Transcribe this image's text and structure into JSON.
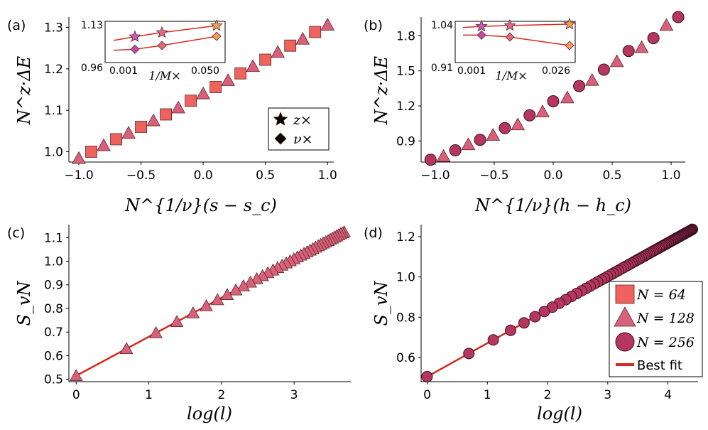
{
  "colors": {
    "n64": "#f0625e",
    "n128": "#d9607a",
    "n256": "#b5365e",
    "fit": "#d42a1f",
    "inset_star_purple": "#c65ab5",
    "inset_star_orange": "#f59a57",
    "inset_diamond_purple": "#c14ba6",
    "inset_diamond_orange": "#f39960"
  },
  "icons": {
    "square": "square-marker-icon",
    "triangle": "triangle-marker-icon",
    "circle": "circle-marker-icon",
    "star": "star-marker-icon",
    "diamond": "diamond-marker-icon"
  },
  "chart_data": [
    {
      "panel": "(a)",
      "type": "scatter",
      "xlabel": "N^{1/ν}(s − s_c)",
      "ylabel": "N^z·ΔE",
      "xlim": [
        -1.08,
        1.05
      ],
      "ylim": [
        0.975,
        1.325
      ],
      "xticks": [
        "−1.0",
        "−0.5",
        "0.0",
        "0.5",
        "1.0"
      ],
      "xtick_values": [
        -1.0,
        -0.5,
        0.0,
        0.5,
        1.0
      ],
      "yticks": [
        "1.0",
        "1.1",
        "1.2",
        "1.3"
      ],
      "ytick_values": [
        1.0,
        1.1,
        1.2,
        1.3
      ],
      "series": [
        {
          "name": "N = 64",
          "marker": "square",
          "x": [
            -0.9,
            -0.7,
            -0.5,
            -0.3,
            -0.1,
            0.1,
            0.3,
            0.5,
            0.7,
            0.9
          ],
          "y": [
            1.0,
            1.03,
            1.06,
            1.09,
            1.123,
            1.156,
            1.189,
            1.222,
            1.256,
            1.289
          ]
        },
        {
          "name": "N = 128",
          "marker": "triangle",
          "x": [
            -1.0,
            -0.8,
            -0.6,
            -0.4,
            -0.2,
            0.0,
            0.2,
            0.4,
            0.6,
            0.8,
            1.0
          ],
          "y": [
            0.984,
            1.015,
            1.045,
            1.075,
            1.106,
            1.14,
            1.172,
            1.206,
            1.24,
            1.272,
            1.306
          ]
        }
      ],
      "legend": {
        "placement": "lower-right",
        "entries": [
          {
            "marker": "star",
            "label": "z×"
          },
          {
            "marker": "diamond",
            "label": "ν×"
          }
        ]
      },
      "inset": {
        "xlabel": "1/M×",
        "xticks": [
          "0.001",
          "0.050"
        ],
        "yticks": [
          "1.13",
          "0.96"
        ],
        "ylim": [
          0.96,
          1.13
        ],
        "x": [
          0.001,
          0.005,
          0.01,
          0.05
        ],
        "z_series": [
          1.052,
          1.07,
          1.09,
          1.123
        ],
        "nu_series": [
          1.005,
          1.01,
          1.028,
          1.072
        ]
      }
    },
    {
      "panel": "(b)",
      "type": "scatter",
      "xlabel": "N^{1/ν}(h − h_c)",
      "ylabel": "N^z·ΔE",
      "xlim": [
        -1.12,
        1.12
      ],
      "ylim": [
        0.72,
        1.96
      ],
      "xticks": [
        "−1.0",
        "−0.5",
        "0.0",
        "0.5",
        "1.0"
      ],
      "xtick_values": [
        -1.0,
        -0.5,
        0.0,
        0.5,
        1.0
      ],
      "yticks": [
        "0.9",
        "1.2",
        "1.5",
        "1.8"
      ],
      "ytick_values": [
        0.9,
        1.2,
        1.5,
        1.8
      ],
      "series": [
        {
          "name": "N = 128",
          "marker": "triangle",
          "x": [
            -0.93,
            -0.72,
            -0.51,
            -0.3,
            -0.09,
            0.12,
            0.33,
            0.54,
            0.75,
            0.96
          ],
          "y": [
            0.77,
            0.87,
            0.95,
            1.04,
            1.15,
            1.27,
            1.42,
            1.58,
            1.7,
            1.89
          ]
        },
        {
          "name": "N = 256",
          "marker": "circle",
          "x": [
            -1.04,
            -0.83,
            -0.62,
            -0.41,
            -0.2,
            0.0,
            0.22,
            0.43,
            0.64,
            0.85,
            1.06
          ],
          "y": [
            0.74,
            0.82,
            0.91,
            1.01,
            1.12,
            1.24,
            1.37,
            1.51,
            1.67,
            1.78,
            1.96
          ]
        }
      ],
      "inset": {
        "xlabel": "1/M×",
        "xticks": [
          "0.001",
          "0.026"
        ],
        "yticks": [
          "1.04",
          "0.91"
        ],
        "ylim": [
          0.91,
          1.04
        ],
        "x": [
          0.001,
          0.005,
          0.01,
          0.026
        ],
        "z_series": [
          1.028,
          1.032,
          1.035,
          1.04
        ],
        "nu_series": [
          1.0,
          1.0,
          0.993,
          0.962
        ]
      }
    },
    {
      "panel": "(c)",
      "type": "scatter",
      "xlabel": "log(l)",
      "ylabel": "S_vN",
      "xlim": [
        -0.1,
        3.78
      ],
      "ylim": [
        0.49,
        1.155
      ],
      "xticks": [
        "0",
        "1",
        "2",
        "3"
      ],
      "xtick_values": [
        0,
        1,
        2,
        3
      ],
      "yticks": [
        "0.5",
        "0.6",
        "0.7",
        "0.8",
        "0.9",
        "1.0",
        "1.1"
      ],
      "ytick_values": [
        0.5,
        0.6,
        0.7,
        0.8,
        0.9,
        1.0,
        1.1
      ],
      "series": [
        {
          "name": "N = 128",
          "marker": "triangle",
          "l_from": 1,
          "l_to": 40,
          "fit_intercept": 0.515,
          "fit_slope": 0.165
        }
      ],
      "fit": {
        "name": "Best fit",
        "x": [
          0,
          3.72
        ],
        "y": [
          0.515,
          1.129
        ]
      }
    },
    {
      "panel": "(d)",
      "type": "scatter",
      "xlabel": "log(l)",
      "ylabel": "S_vN",
      "xlim": [
        -0.1,
        4.5
      ],
      "ylim": [
        0.48,
        1.26
      ],
      "xticks": [
        "0",
        "1",
        "2",
        "3",
        "4"
      ],
      "xtick_values": [
        0,
        1,
        2,
        3,
        4
      ],
      "yticks": [
        "0.6",
        "0.8",
        "1.0",
        "1.2"
      ],
      "ytick_values": [
        0.6,
        0.8,
        1.0,
        1.2
      ],
      "series": [
        {
          "name": "N = 256",
          "marker": "circle",
          "l_from": 1,
          "l_to": 82,
          "fit_intercept": 0.505,
          "fit_slope": 0.166
        }
      ],
      "fit": {
        "name": "Best fit",
        "x": [
          0,
          4.41
        ],
        "y": [
          0.505,
          1.237
        ]
      },
      "legend": {
        "placement": "lower-right",
        "entries": [
          {
            "marker": "square",
            "label": "N = 64"
          },
          {
            "marker": "triangle",
            "label": "N = 128"
          },
          {
            "marker": "circle",
            "label": "N = 256"
          },
          {
            "marker": "line",
            "label": "Best fit"
          }
        ]
      }
    }
  ]
}
